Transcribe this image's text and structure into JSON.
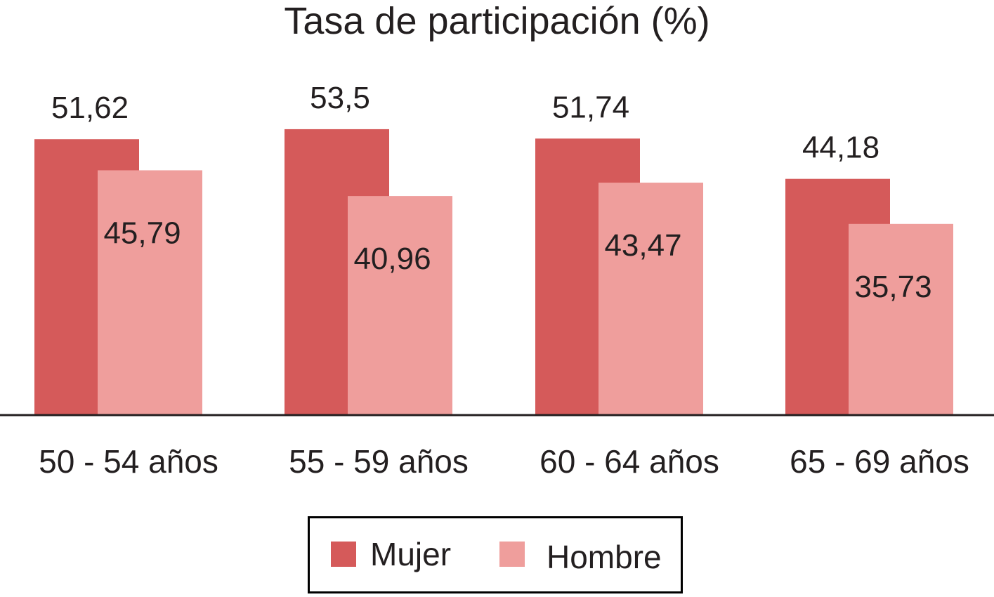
{
  "chart_data": {
    "type": "bar",
    "title": "Tasa de participación (%)",
    "xlabel": "",
    "ylabel": "",
    "categories": [
      "50 - 54 años",
      "55 - 59 años",
      "60 - 64 años",
      "65 - 69 años"
    ],
    "series": [
      {
        "name": "Mujer",
        "values": [
          51.62,
          53.5,
          51.74,
          44.18
        ],
        "labels": [
          "51,62",
          "53,5",
          "51,74",
          "44,18"
        ],
        "color": "#d55a5a"
      },
      {
        "name": "Hombre",
        "values": [
          45.79,
          40.96,
          43.47,
          35.73
        ],
        "labels": [
          "45,79",
          "40,96",
          "43,47",
          "35,73"
        ],
        "color": "#ef9e9c"
      }
    ],
    "ylim": [
      0,
      60
    ],
    "grid": false,
    "axis_visible": false,
    "legend_position": "bottom-center"
  }
}
